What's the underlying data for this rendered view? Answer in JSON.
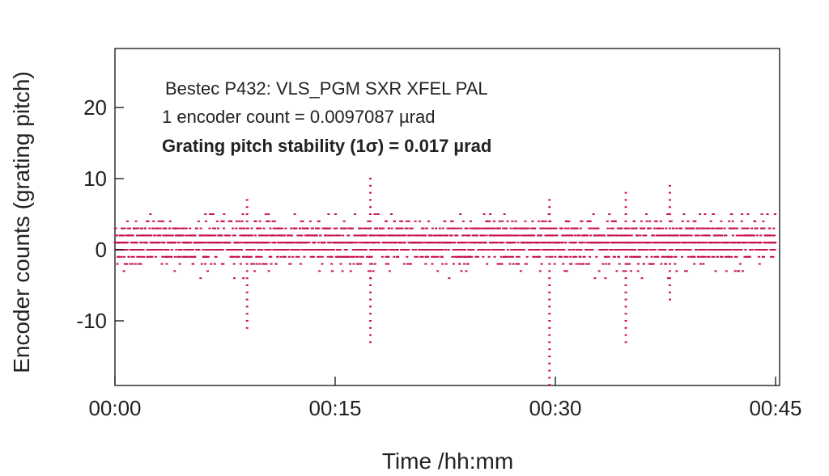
{
  "chart_data": {
    "type": "scatter",
    "xlabel": "Time /hh:mm",
    "ylabel": "Encoder counts (grating pitch)",
    "xlim_minutes": [
      0,
      45
    ],
    "ylim": [
      -19,
      28
    ],
    "xticks": [
      {
        "v": 0,
        "label": "00:00"
      },
      {
        "v": 15,
        "label": "00:15"
      },
      {
        "v": 30,
        "label": "00:30"
      },
      {
        "v": 45,
        "label": "00:45"
      }
    ],
    "yticks": [
      {
        "v": 20,
        "label": "20"
      },
      {
        "v": 10,
        "label": "10"
      },
      {
        "v": 0,
        "label": "0"
      },
      {
        "v": -10,
        "label": "-10"
      }
    ],
    "annotations": [
      "Bestec P432: VLS_PGM SXR XFEL PAL",
      "1 encoder count = 0.0097087 µrad",
      "Grating pitch stability (1σ) = 0.017 µrad"
    ],
    "series": [
      {
        "name": "encoder counts",
        "color": "#c8104a",
        "baseline_mean": 1,
        "baseline_sigma_counts": 1.75,
        "baseline_min": -4,
        "baseline_max": 5,
        "sample_interval_s": 1,
        "spikes": [
          {
            "t_min": 9.0,
            "min": -11,
            "max": 7
          },
          {
            "t_min": 17.4,
            "min": -13,
            "max": 10
          },
          {
            "t_min": 29.6,
            "min": -19,
            "max": 7
          },
          {
            "t_min": 34.8,
            "min": -13,
            "max": 8
          },
          {
            "t_min": 37.8,
            "min": -7,
            "max": 9
          }
        ]
      }
    ]
  }
}
